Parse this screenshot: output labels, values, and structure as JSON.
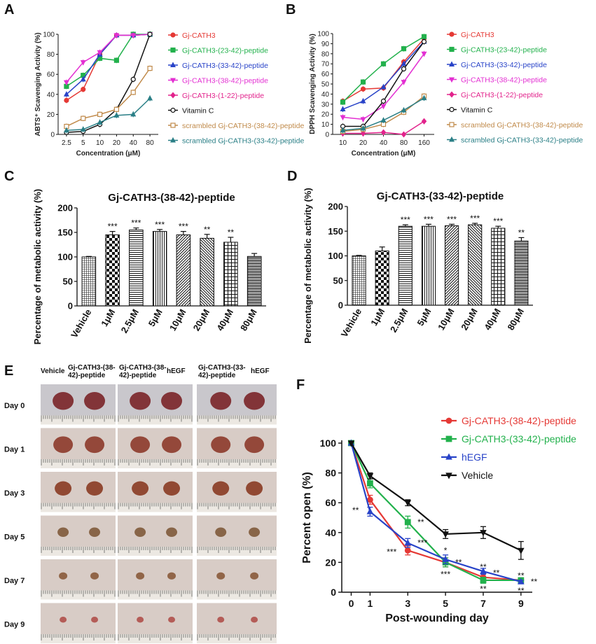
{
  "panel_labels": {
    "A": "A",
    "B": "B",
    "C": "C",
    "D": "D",
    "E": "E",
    "F": "F"
  },
  "colors": {
    "red": "#e53935",
    "green": "#22b14c",
    "blue": "#2843c8",
    "magenta": "#e32fd2",
    "pink": "#e2238c",
    "black": "#111111",
    "tan": "#c08a4a",
    "teal": "#2a7f86"
  },
  "chart_data": [
    {
      "id": "A",
      "type": "line",
      "ylabel": "ABTS⁺ Scavenging Activity (%)",
      "xlabel": "Concentration (μM)",
      "categories": [
        "2.5",
        "5",
        "10",
        "20",
        "40",
        "80"
      ],
      "ylim": [
        0,
        100
      ],
      "yticks": [
        0,
        20,
        40,
        60,
        80,
        100
      ],
      "legend_position": "right",
      "series": [
        {
          "name": "Gj-CATH3",
          "color": "red",
          "marker": "circle",
          "values": [
            34,
            45,
            80,
            99,
            99,
            100
          ]
        },
        {
          "name": "Gj-CATH3-(23-42)-peptide",
          "color": "green",
          "marker": "square",
          "values": [
            48,
            59,
            76,
            74,
            100,
            100
          ]
        },
        {
          "name": "Gj-CATH3-(33-42)-peptide",
          "color": "blue",
          "marker": "triangle",
          "values": [
            40,
            55,
            80,
            99,
            99,
            100
          ]
        },
        {
          "name": "Gj-CATH3-(38-42)-peptide",
          "color": "magenta",
          "marker": "triangle-down",
          "values": [
            52,
            72,
            82,
            99,
            99,
            100
          ]
        },
        {
          "name": "Gj-CATH3-(1-22)-peptide",
          "color": "pink",
          "marker": "diamond",
          "values": [
            null,
            null,
            null,
            null,
            null,
            null
          ]
        },
        {
          "name": "Vitamin C",
          "color": "black",
          "marker": "open-circle",
          "values": [
            2,
            3,
            10,
            25,
            55,
            100
          ]
        },
        {
          "name": "scrambled Gj-CATH3-(38-42)-peptide",
          "color": "tan",
          "marker": "open-square",
          "values": [
            8,
            16,
            20,
            25,
            42,
            66
          ]
        },
        {
          "name": "scrambled Gj-CATH3-(33-42)-peptide",
          "color": "teal",
          "marker": "triangle",
          "values": [
            4,
            5,
            12,
            19,
            20,
            36
          ]
        }
      ]
    },
    {
      "id": "B",
      "type": "line",
      "ylabel": "DPPH Scavenging Activity (%)",
      "xlabel": "Concentration (μM)",
      "categories": [
        "10",
        "20",
        "40",
        "80",
        "160"
      ],
      "ylim": [
        0,
        100
      ],
      "yticks": [
        0,
        10,
        20,
        30,
        40,
        50,
        60,
        70,
        80,
        90,
        100
      ],
      "legend_position": "right",
      "series": [
        {
          "name": "Gj-CATH3",
          "color": "red",
          "marker": "circle",
          "values": [
            33,
            45,
            46,
            72,
            95
          ]
        },
        {
          "name": "Gj-CATH3-(23-42)-peptide",
          "color": "green",
          "marker": "square",
          "values": [
            32,
            52,
            70,
            85,
            97
          ]
        },
        {
          "name": "Gj-CATH3-(33-42)-peptide",
          "color": "blue",
          "marker": "triangle",
          "values": [
            25,
            33,
            47,
            70,
            92
          ]
        },
        {
          "name": "Gj-CATH3-(38-42)-peptide",
          "color": "magenta",
          "marker": "triangle-down",
          "values": [
            17,
            15,
            28,
            52,
            80
          ]
        },
        {
          "name": "Gj-CATH3-(1-22)-peptide",
          "color": "pink",
          "marker": "diamond",
          "values": [
            1,
            1,
            2,
            0,
            13
          ]
        },
        {
          "name": "Vitamin C",
          "color": "black",
          "marker": "open-circle",
          "values": [
            8,
            8,
            33,
            65,
            92
          ]
        },
        {
          "name": "scrambled Gj-CATH3-(38-42)-peptide",
          "color": "tan",
          "marker": "open-square",
          "values": [
            3,
            5,
            10,
            22,
            38
          ]
        },
        {
          "name": "scrambled Gj-CATH3-(33-42)-peptide",
          "color": "teal",
          "marker": "triangle",
          "values": [
            4,
            6,
            14,
            24,
            36
          ]
        }
      ]
    },
    {
      "id": "C",
      "type": "bar",
      "title": "Gj-CATH3-(38-42)-peptide",
      "ylabel": "Percentage of metabolic activity (%)",
      "categories": [
        "Vehicle",
        "1μM",
        "2.5μM",
        "5μM",
        "10μM",
        "20μM",
        "40μM",
        "80μM"
      ],
      "values": [
        100,
        145,
        155,
        152,
        145,
        138,
        130,
        101
      ],
      "errors": [
        1,
        7,
        4,
        4,
        7,
        8,
        10,
        6
      ],
      "significance": [
        "",
        "***",
        "***",
        "***",
        "***",
        "**",
        "**",
        ""
      ],
      "ylim": [
        0,
        200
      ],
      "yticks": [
        0,
        50,
        100,
        150,
        200
      ],
      "patterns": [
        "dense-grid",
        "check",
        "hlines",
        "vlines",
        "diag-right",
        "diag-left",
        "grid",
        "grid-dense"
      ]
    },
    {
      "id": "D",
      "type": "bar",
      "title": "Gj-CATH3-(33-42)-peptide",
      "ylabel": "Percentage of metabolic activity (%)",
      "categories": [
        "Vehicle",
        "1μM",
        "2.5μM",
        "5μM",
        "10μM",
        "20μM",
        "40μM",
        "80μM"
      ],
      "values": [
        100,
        110,
        160,
        160,
        161,
        163,
        156,
        130
      ],
      "errors": [
        1,
        8,
        3,
        4,
        3,
        3,
        4,
        7
      ],
      "significance": [
        "",
        "",
        "***",
        "***",
        "***",
        "***",
        "***",
        "**"
      ],
      "ylim": [
        0,
        200
      ],
      "yticks": [
        0,
        50,
        100,
        150,
        200
      ],
      "patterns": [
        "dense-grid",
        "check",
        "hlines",
        "vlines",
        "diag-right",
        "diag-left",
        "grid",
        "grid-dense"
      ]
    },
    {
      "id": "F",
      "type": "line",
      "ylabel": "Percent open (%)",
      "xlabel": "Post-wounding day",
      "x": [
        0,
        1,
        3,
        5,
        7,
        9
      ],
      "xlim": [
        -0.5,
        9.6
      ],
      "ylim": [
        0,
        100
      ],
      "yticks": [
        0,
        20,
        40,
        60,
        80,
        100
      ],
      "legend_position": "top-right",
      "series": [
        {
          "name": "Gj-CATH3-(38-42)-peptide",
          "color": "red",
          "marker": "circle",
          "values": [
            100,
            62,
            28,
            20,
            10,
            8
          ],
          "errors": [
            0,
            3,
            3,
            3,
            2,
            1
          ]
        },
        {
          "name": "Gj-CATH3-(33-42)-peptide",
          "color": "green",
          "marker": "square",
          "values": [
            100,
            73,
            47,
            20,
            8,
            8
          ],
          "errors": [
            0,
            3,
            4,
            3,
            2,
            1
          ]
        },
        {
          "name": "hEGF",
          "color": "blue",
          "marker": "triangle",
          "values": [
            100,
            54,
            33,
            22,
            14,
            7
          ],
          "errors": [
            0,
            3,
            3,
            3,
            2,
            1
          ]
        },
        {
          "name": "Vehicle",
          "color": "black",
          "marker": "triangle-down",
          "values": [
            100,
            78,
            60,
            39,
            40,
            28
          ],
          "errors": [
            0,
            2,
            2,
            3,
            4,
            6
          ]
        }
      ],
      "annotations": [
        {
          "day": 1,
          "y": 55,
          "text": "**",
          "side": "left"
        },
        {
          "day": 3,
          "y": 47,
          "text": "**",
          "side": "right"
        },
        {
          "day": 3,
          "y": 33,
          "text": "***",
          "side": "right"
        },
        {
          "day": 3,
          "y": 27,
          "text": "***",
          "side": "left"
        },
        {
          "day": 5,
          "y": 28,
          "text": "*",
          "side": "center"
        },
        {
          "day": 5,
          "y": 20,
          "text": "**",
          "side": "right"
        },
        {
          "day": 5,
          "y": 12,
          "text": "***",
          "side": "center"
        },
        {
          "day": 7,
          "y": 17,
          "text": "**",
          "side": "center"
        },
        {
          "day": 7,
          "y": 13,
          "text": "**",
          "side": "right"
        },
        {
          "day": 7,
          "y": 2,
          "text": "**",
          "side": "center"
        },
        {
          "day": 9,
          "y": 11,
          "text": "**",
          "side": "center"
        },
        {
          "day": 9,
          "y": 7,
          "text": "**",
          "side": "right"
        },
        {
          "day": 9,
          "y": 1,
          "text": "**",
          "side": "center"
        }
      ]
    }
  ],
  "panel_E": {
    "columns": [
      "Vehicle",
      "Gj-CATH3-(38-\n42)-peptide",
      "Gj-CATH3-(38-\n42)-peptide",
      "hEGF",
      "Gj-CATH3-(33-\n42)-peptide",
      "hEGF"
    ],
    "days": [
      "Day 0",
      "Day 1",
      "Day 3",
      "Day 5",
      "Day 7",
      "Day 9"
    ]
  }
}
